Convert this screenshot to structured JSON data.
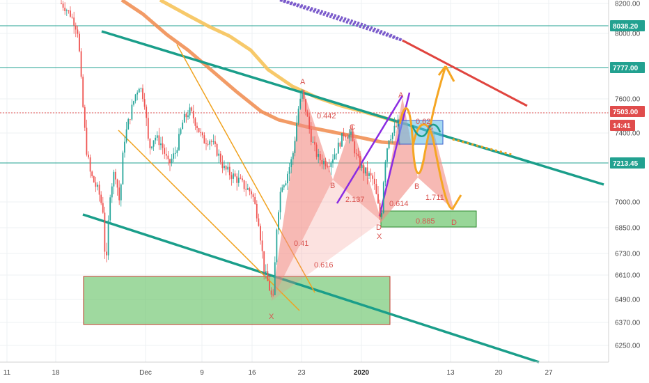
{
  "chart_data": {
    "type": "candlestick",
    "symbol_note": "",
    "y_axis": {
      "min": 6150,
      "max": 8240,
      "ticks": [
        8200,
        8038.2,
        8000,
        7777,
        7600,
        7503,
        7400,
        7213.45,
        7000,
        6850,
        6730,
        6610,
        6490,
        6370,
        6250
      ],
      "tick_labels": [
        "8200.00",
        "8038.20",
        "8000.00",
        "7777.00",
        "7600.00",
        "7503.00",
        "7400.00",
        "7213.45",
        "7000.00",
        "6850.00",
        "6730.00",
        "6610.00",
        "6490.00",
        "6370.00",
        "6250.00"
      ]
    },
    "x_axis": {
      "labels": [
        "11",
        "18",
        "Dec",
        "9",
        "16",
        "23",
        "2020",
        "13",
        "20",
        "27"
      ],
      "bold_label": "2020"
    },
    "price_badges": [
      {
        "value": "8038.20",
        "color": "#22a190"
      },
      {
        "value": "7777.00",
        "color": "#22a190"
      },
      {
        "value": "7503.00",
        "color": "#e04c4c"
      },
      {
        "value": "14:41",
        "color": "#e04c4c"
      },
      {
        "value": "7213.45",
        "color": "#22a190"
      }
    ],
    "horizontal_levels": [
      {
        "value": 8038.2,
        "color": "#22a190",
        "style": "solid"
      },
      {
        "value": 7777,
        "color": "#22a190",
        "style": "solid"
      },
      {
        "value": 7503,
        "color": "#e04c4c",
        "style": "dotted"
      },
      {
        "value": 7213.45,
        "color": "#22a190",
        "style": "solid"
      }
    ],
    "harmonic_pattern_1": {
      "point_labels": [
        "X",
        "A",
        "B",
        "C",
        "D"
      ],
      "ratios": [
        "0.41",
        "0.616",
        "0.442",
        "2.137"
      ]
    },
    "harmonic_pattern_2": {
      "point_labels": [
        "X",
        "A",
        "B",
        "C",
        "D"
      ],
      "ratios": [
        "0.614",
        "0.885",
        "1.711",
        "0.62"
      ]
    },
    "zones": [
      {
        "name": "support-zone",
        "color": "#6cc46c"
      },
      {
        "name": "target-zone",
        "color": "#6cc46c"
      },
      {
        "name": "current-zone",
        "color": "#5bbbe6"
      }
    ],
    "colors": {
      "candle_up": "#26a69a",
      "candle_down": "#ef5350",
      "pattern_fill": "#f28b82",
      "trend_teal": "#1a9e8a",
      "ma_orange": "#f08a4b",
      "ma_yellow": "#f6c35a",
      "ma_purple": "#7a5acb",
      "channel_red": "#e0443e",
      "trend_orange": "#f0a21e",
      "forecast_orange": "#f5a623",
      "channel_purple": "#8a2be2"
    }
  }
}
